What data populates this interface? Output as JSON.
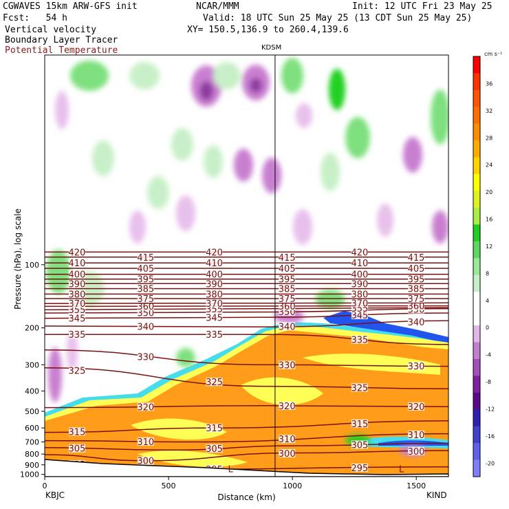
{
  "header": {
    "model": "CGWAVES 15km ARW-GFS init",
    "org": "NCAR/MMM",
    "init": "Init: 12 UTC Fri 23 May 25",
    "fcst": "Fcst:   54 h",
    "valid": "Valid: 18 UTC Sun 25 May 25 (13 CDT Sun 25 May 25)",
    "field1": "Vertical velocity",
    "xy": "XY= 150.5,136.9 to 260.4,139.6",
    "field2": "Boundary Layer Tracer",
    "field3": "Potential Temperature"
  },
  "colors": {
    "theta_contour": "#7a1010",
    "down_light": "#e8c0ec",
    "down_mid": "#c97fd0",
    "down_dark": "#8e3aa0",
    "up_light": "#c8f0c8",
    "up_mid": "#7ee07e",
    "up_strong": "#20d020",
    "tracer_yellow": "#ffff55",
    "tracer_orange": "#ff9d1a",
    "tracer_cyan": "#44ddee",
    "tracer_blue": "#2255ee"
  },
  "chart_data": {
    "type": "cross-section",
    "station_top": "KDSM",
    "station_left": "KBJC",
    "station_right": "KIND",
    "xlabel": "Distance (km)",
    "ylabel": "Pressure (hPa), log scale",
    "xlim": [
      0,
      1630
    ],
    "ylim": [
      1025,
      10
    ],
    "x_ticks": [
      0,
      500,
      1000,
      1500
    ],
    "x_tick_labels": [
      "0",
      "500",
      "1000",
      "1500"
    ],
    "y_ticks": [
      100,
      200,
      300,
      400,
      500,
      600,
      700,
      800,
      900,
      1000
    ],
    "y_tick_labels": [
      "100",
      "200",
      "300",
      "400",
      "500",
      "600",
      "700",
      "800",
      "900",
      "1000"
    ],
    "station_marker_km": 930,
    "colorbar": {
      "unit": "cm s⁻¹",
      "levels": [
        -20,
        -16,
        -12,
        -8,
        -4,
        0,
        4,
        8,
        12,
        16,
        20,
        24,
        28,
        32,
        36
      ],
      "labels": [
        "-20",
        "-16",
        "-12",
        "-8",
        "-4",
        "0",
        "4",
        "8",
        "12",
        "16",
        "20",
        "24",
        "28",
        "32",
        "36"
      ],
      "colors": [
        "#7f7fff",
        "#6060ee",
        "#4040d0",
        "#3020b0",
        "#5a0a8a",
        "#8020a0",
        "#a050b8",
        "#c080cc",
        "#e0b8e8",
        "#ffffff",
        "#ffffff",
        "#c8f0c8",
        "#9ae89a",
        "#60d860",
        "#22cc22",
        "#aaee44",
        "#e0f020",
        "#ffff00",
        "#ffd400",
        "#ffaa00",
        "#ff8c00",
        "#ff7000",
        "#ff5500",
        "#ff3300",
        "#ff0000"
      ]
    },
    "theta_contours": [
      {
        "label": "295",
        "pts": [
          [
            0,
            870
          ],
          [
            400,
            950
          ],
          [
            1630,
            920
          ]
        ]
      },
      {
        "label": "300",
        "pts": [
          [
            0,
            805
          ],
          [
            400,
            860
          ],
          [
            1000,
            790
          ],
          [
            1630,
            770
          ]
        ]
      },
      {
        "label": "305",
        "pts": [
          [
            0,
            745
          ],
          [
            500,
            765
          ],
          [
            1000,
            730
          ],
          [
            1630,
            710
          ]
        ]
      },
      {
        "label": "310",
        "pts": [
          [
            0,
            690
          ],
          [
            600,
            700
          ],
          [
            1630,
            640
          ]
        ]
      },
      {
        "label": "315",
        "pts": [
          [
            0,
            630
          ],
          [
            700,
            600
          ],
          [
            1630,
            555
          ]
        ]
      },
      {
        "label": "320",
        "pts": [
          [
            0,
            480
          ],
          [
            900,
            470
          ],
          [
            1630,
            475
          ]
        ]
      },
      {
        "label": "325",
        "pts": [
          [
            0,
            310
          ],
          [
            900,
            380
          ],
          [
            1630,
            390
          ]
        ]
      },
      {
        "label": "330",
        "pts": [
          [
            0,
            255
          ],
          [
            900,
            300
          ],
          [
            1630,
            305
          ]
        ]
      },
      {
        "label": "335",
        "pts": [
          [
            0,
            215
          ],
          [
            900,
            215
          ],
          [
            1630,
            240
          ]
        ]
      },
      {
        "label": "340",
        "pts": [
          [
            0,
            196
          ],
          [
            900,
            198
          ],
          [
            1630,
            185
          ]
        ]
      },
      {
        "label": "345",
        "pts": [
          [
            0,
            180
          ],
          [
            900,
            178
          ],
          [
            1630,
            170
          ]
        ]
      },
      {
        "label": "350",
        "pts": [
          [
            0,
            170
          ],
          [
            900,
            168
          ],
          [
            1630,
            162
          ]
        ]
      },
      {
        "label": "355",
        "pts": [
          [
            0,
            164
          ],
          [
            900,
            162
          ],
          [
            1630,
            160
          ]
        ]
      },
      {
        "label": "360",
        "pts": [
          [
            0,
            158
          ],
          [
            1630,
            157
          ]
        ]
      },
      {
        "label": "370",
        "pts": [
          [
            0,
            153
          ],
          [
            1630,
            152
          ]
        ]
      },
      {
        "label": "375",
        "pts": [
          [
            0,
            145
          ],
          [
            1630,
            145
          ]
        ]
      },
      {
        "label": "380",
        "pts": [
          [
            0,
            138
          ],
          [
            1630,
            138
          ]
        ]
      },
      {
        "label": "385",
        "pts": [
          [
            0,
            130
          ],
          [
            1630,
            130
          ]
        ]
      },
      {
        "label": "390",
        "pts": [
          [
            0,
            123
          ],
          [
            1630,
            123
          ]
        ]
      },
      {
        "label": "395",
        "pts": [
          [
            0,
            117
          ],
          [
            1630,
            117
          ]
        ]
      },
      {
        "label": "400",
        "pts": [
          [
            0,
            111
          ],
          [
            1630,
            111
          ]
        ]
      },
      {
        "label": "405",
        "pts": [
          [
            0,
            104
          ],
          [
            1630,
            104
          ]
        ]
      },
      {
        "label": "410",
        "pts": [
          [
            0,
            98
          ],
          [
            1630,
            98
          ]
        ]
      },
      {
        "label": "415",
        "pts": [
          [
            0,
            92
          ],
          [
            1630,
            92
          ]
        ]
      },
      {
        "label": "420",
        "pts": [
          [
            0,
            87
          ],
          [
            1630,
            87
          ]
        ]
      }
    ],
    "annotations": [
      "L",
      "L"
    ]
  }
}
